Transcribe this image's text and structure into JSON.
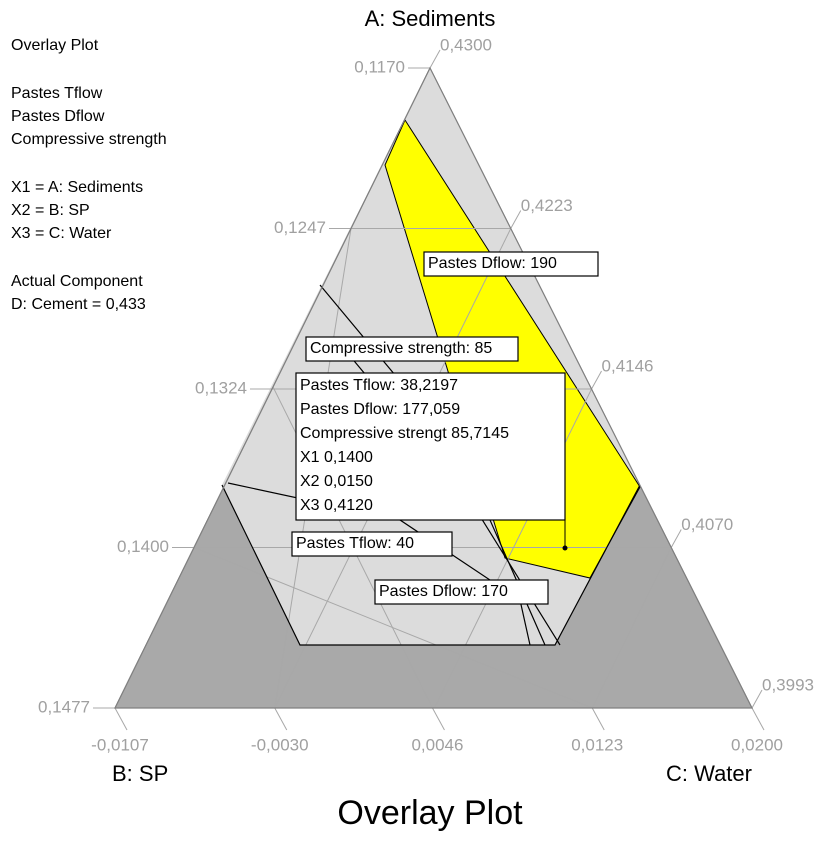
{
  "chart_data": {
    "type": "ternary",
    "title": "Overlay Plot",
    "vertices": {
      "top": "A: Sediments",
      "left": "B: SP",
      "right": "C: Water"
    },
    "left_axis": {
      "lim": [
        0.117,
        0.1477
      ],
      "ticks": [
        {
          "value": 0.117,
          "label": "0,1170"
        },
        {
          "value": 0.1247,
          "label": "0,1247"
        },
        {
          "value": 0.1324,
          "label": "0,1324"
        },
        {
          "value": 0.14,
          "label": "0,1400"
        },
        {
          "value": 0.1477,
          "label": "0,1477"
        }
      ]
    },
    "right_axis": {
      "lim": [
        0.43,
        0.3993
      ],
      "ticks": [
        {
          "value": 0.43,
          "label": "0,4300"
        },
        {
          "value": 0.4223,
          "label": "0,4223"
        },
        {
          "value": 0.4146,
          "label": "0,4146"
        },
        {
          "value": 0.407,
          "label": "0,4070"
        },
        {
          "value": 0.3993,
          "label": "0,3993"
        }
      ]
    },
    "bottom_axis": {
      "lim": [
        -0.0107,
        0.02
      ],
      "ticks": [
        {
          "value": -0.0107,
          "label": "-0,0107"
        },
        {
          "value": -0.003,
          "label": "-0,0030"
        },
        {
          "value": 0.0046,
          "label": "0,0046"
        },
        {
          "value": 0.0123,
          "label": "0,0123"
        },
        {
          "value": 0.02,
          "label": "0,0200"
        }
      ]
    },
    "legend_text": [
      [
        "Overlay Plot"
      ],
      [
        "Pastes Tflow",
        "Pastes Dflow",
        "Compressive strength"
      ],
      [
        "X1 = A: Sediments",
        "X2 = B: SP",
        "X3 = C: Water"
      ],
      [
        "Actual Component",
        "D: Cement = 0,433"
      ]
    ],
    "contour_labels": [
      "Pastes Dflow: 190",
      "Compressive strength: 85",
      "Pastes Tflow: 40",
      "Pastes Dflow: 170"
    ],
    "flag": [
      "Pastes Tflow:  38,2197",
      "Pastes Dflow:  177,059",
      "Compressive strengt 85,7145",
      "X1  0,1400",
      "X2  0,0150",
      "X3  0,4120"
    ]
  }
}
